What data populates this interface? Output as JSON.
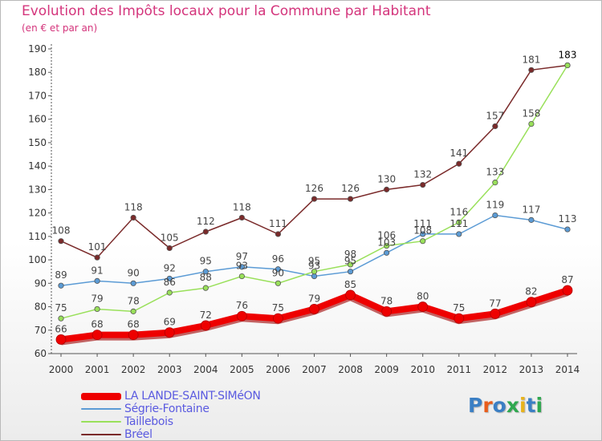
{
  "header": {
    "title": "Evolution des Impôts locaux pour la Commune par Habitant",
    "subtitle": "(en € et par an)"
  },
  "logo": {
    "text": "Proxiti",
    "colors": [
      "#3b7fc4",
      "#e85d1c",
      "#3b7fc4",
      "#2fa84f",
      "#e8b31c",
      "#3b7fc4",
      "#2fa84f"
    ]
  },
  "chart_data": {
    "type": "line",
    "title": "Evolution des Impôts locaux pour la Commune par Habitant",
    "subtitle": "(en € et par an)",
    "xlabel": "",
    "ylabel": "",
    "categories": [
      "2000",
      "2001",
      "2002",
      "2003",
      "2004",
      "2005",
      "2006",
      "2007",
      "2008",
      "2009",
      "2010",
      "2011",
      "2012",
      "2013",
      "2014"
    ],
    "ylim": [
      60,
      190
    ],
    "yticks": [
      60,
      70,
      80,
      90,
      100,
      110,
      120,
      130,
      140,
      150,
      160,
      170,
      180,
      190
    ],
    "grid": false,
    "legend_position": "bottom-left",
    "series": [
      {
        "name": "LA LANDE-SAINT-SIMéON",
        "color": "#ee0000",
        "values": [
          66,
          68,
          68,
          69,
          72,
          76,
          75,
          79,
          85,
          78,
          80,
          75,
          77,
          82,
          87
        ],
        "labels": [
          "66",
          "68",
          "68",
          "69",
          "72",
          "76",
          "75",
          "79",
          "85",
          "78",
          "80",
          "75",
          "77",
          "82",
          "87"
        ],
        "emphasis": true
      },
      {
        "name": "Ségrie-Fontaine",
        "color": "#5b9bd5",
        "values": [
          89,
          91,
          90,
          92,
          95,
          97,
          96,
          93,
          95,
          103,
          111,
          111,
          119,
          117,
          113
        ],
        "labels": [
          "89",
          "91",
          "90",
          "92",
          "95",
          "97",
          "96",
          "93",
          "95",
          "103",
          "111",
          "111",
          "119",
          "117",
          "113"
        ],
        "emphasis": false
      },
      {
        "name": "Taillebois",
        "color": "#99e05a",
        "values": [
          75,
          79,
          78,
          86,
          88,
          93,
          90,
          95,
          98,
          106,
          108,
          116,
          133,
          158,
          183
        ],
        "labels": [
          "75",
          "79",
          "78",
          "86",
          "88",
          "93",
          "90",
          "95",
          "98",
          "106",
          "108",
          "116",
          "133",
          "158",
          ""
        ],
        "emphasis": false
      },
      {
        "name": "Bréel",
        "color": "#7a2a2a",
        "values": [
          108,
          101,
          118,
          105,
          112,
          118,
          111,
          126,
          126,
          130,
          132,
          141,
          157,
          181,
          183
        ],
        "labels": [
          "108",
          "101",
          "118",
          "105",
          "112",
          "118",
          "111",
          "126",
          "126",
          "130",
          "132",
          "141",
          "157",
          "181",
          "183"
        ],
        "emphasis": false
      }
    ]
  }
}
